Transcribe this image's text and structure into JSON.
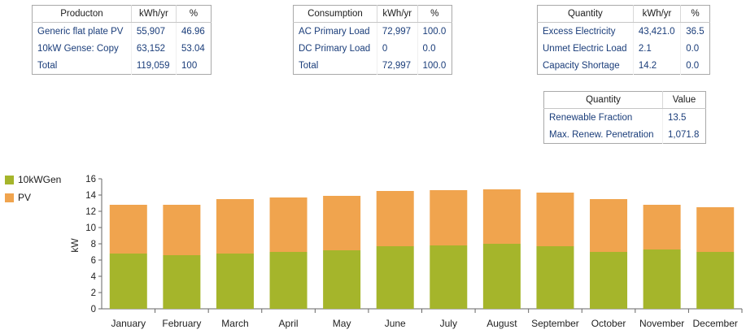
{
  "colors": {
    "gen": "#a5b52b",
    "pv": "#f0a44e",
    "axis": "#666666",
    "cell_text": "#1a3d7a"
  },
  "production_table": {
    "headers": [
      "Producton",
      "kWh/yr",
      "%"
    ],
    "rows": [
      [
        "Generic flat plate PV",
        "55,907",
        "46.96"
      ],
      [
        "10kW Gense: Copy",
        "63,152",
        "53.04"
      ],
      [
        "Total",
        "119,059",
        "100"
      ]
    ]
  },
  "consumption_table": {
    "headers": [
      "Consumption",
      "kWh/yr",
      "%"
    ],
    "rows": [
      [
        "AC Primary Load",
        "72,997",
        "100.0"
      ],
      [
        "DC Primary Load",
        "0",
        "0.0"
      ],
      [
        "Total",
        "72,997",
        "100.0"
      ]
    ]
  },
  "quantity_table": {
    "headers": [
      "Quantity",
      "kWh/yr",
      "%"
    ],
    "rows": [
      [
        "Excess Electricity",
        "43,421.0",
        "36.5"
      ],
      [
        "Unmet Electric Load",
        "2.1",
        "0.0"
      ],
      [
        "Capacity Shortage",
        "14.2",
        "0.0"
      ]
    ]
  },
  "renewable_table": {
    "headers": [
      "Quantity",
      "Value"
    ],
    "rows": [
      [
        "Renewable Fraction",
        "13.5"
      ],
      [
        "Max. Renew. Penetration",
        "1,071.8"
      ]
    ]
  },
  "chart_data": {
    "type": "bar",
    "stacked": true,
    "title": "",
    "xlabel": "",
    "ylabel": "kW",
    "ylim": [
      0,
      16
    ],
    "yticks": [
      0,
      2,
      4,
      6,
      8,
      10,
      12,
      14,
      16
    ],
    "legend_position": "left",
    "categories": [
      "January",
      "February",
      "March",
      "April",
      "May",
      "June",
      "July",
      "August",
      "September",
      "October",
      "November",
      "December"
    ],
    "series": [
      {
        "name": "10kWGen",
        "values": [
          6.8,
          6.6,
          6.8,
          7.0,
          7.2,
          7.7,
          7.8,
          8.0,
          7.7,
          7.0,
          7.3,
          7.0
        ]
      },
      {
        "name": "PV",
        "values": [
          6.0,
          6.2,
          6.7,
          6.7,
          6.7,
          6.8,
          6.8,
          6.7,
          6.6,
          6.5,
          5.5,
          5.5
        ]
      }
    ]
  }
}
